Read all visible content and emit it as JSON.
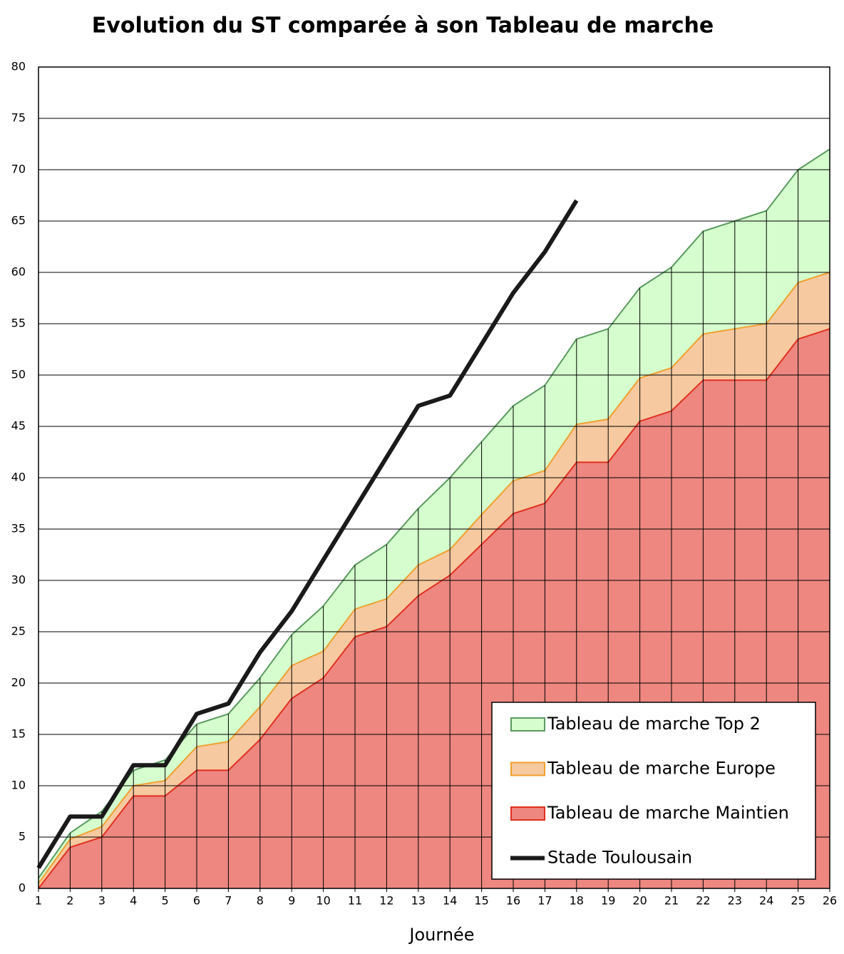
{
  "chart_data": {
    "type": "area",
    "title": "Evolution du ST comparée à son Tableau de marche",
    "xlabel": "Journée",
    "x": [
      1,
      2,
      3,
      4,
      5,
      6,
      7,
      8,
      9,
      10,
      11,
      12,
      13,
      14,
      15,
      16,
      17,
      18,
      19,
      20,
      21,
      22,
      23,
      24,
      25,
      26
    ],
    "xlim": [
      1,
      26
    ],
    "xticks": [
      1,
      2,
      3,
      4,
      5,
      6,
      7,
      8,
      9,
      10,
      11,
      12,
      13,
      14,
      15,
      16,
      17,
      18,
      19,
      20,
      21,
      22,
      23,
      24,
      25,
      26
    ],
    "ylim": [
      0,
      80
    ],
    "yticks": [
      0,
      5,
      10,
      15,
      20,
      25,
      30,
      35,
      40,
      45,
      50,
      55,
      60,
      65,
      70,
      75,
      80
    ],
    "grid": true,
    "legend": "lower right",
    "series": [
      {
        "name": "Tableau de marche Top 2",
        "color": "#5a9a60",
        "fill": "#d5fdcd",
        "values": [
          1,
          5.4,
          7.5,
          11.5,
          12.5,
          16,
          17,
          20.5,
          24.7,
          27.5,
          31.5,
          33.5,
          37,
          40,
          43.5,
          47,
          49,
          53.5,
          54.5,
          58.5,
          60.5,
          64,
          65,
          66,
          70,
          72
        ]
      },
      {
        "name": "Tableau de marche Europe",
        "color": "#f0a030",
        "fill": "#f6c9a0",
        "values": [
          0.5,
          4.8,
          6,
          10,
          10.5,
          13.8,
          14.3,
          17.7,
          21.7,
          23.1,
          27.2,
          28.2,
          31.5,
          33,
          36.4,
          39.7,
          40.7,
          45.2,
          45.7,
          49.7,
          50.7,
          54,
          54.5,
          55,
          59,
          60
        ]
      },
      {
        "name": "Tableau de marche Maintien",
        "color": "#e03020",
        "fill": "#ed8780",
        "values": [
          0,
          4,
          5,
          9,
          9,
          11.5,
          11.5,
          14.5,
          18.5,
          20.5,
          24.5,
          25.5,
          28.5,
          30.5,
          33.5,
          36.5,
          37.5,
          41.5,
          41.5,
          45.5,
          46.5,
          49.5,
          49.5,
          49.5,
          53.5,
          54.5
        ]
      },
      {
        "name": "Stade Toulousain",
        "type": "line",
        "color": "#1a1a1a",
        "values": [
          2,
          7,
          7,
          12,
          12,
          17,
          18,
          23,
          27,
          32,
          37,
          42,
          47,
          48,
          53,
          58,
          62,
          67,
          null,
          null,
          null,
          null,
          null,
          null,
          null,
          null
        ]
      }
    ]
  }
}
